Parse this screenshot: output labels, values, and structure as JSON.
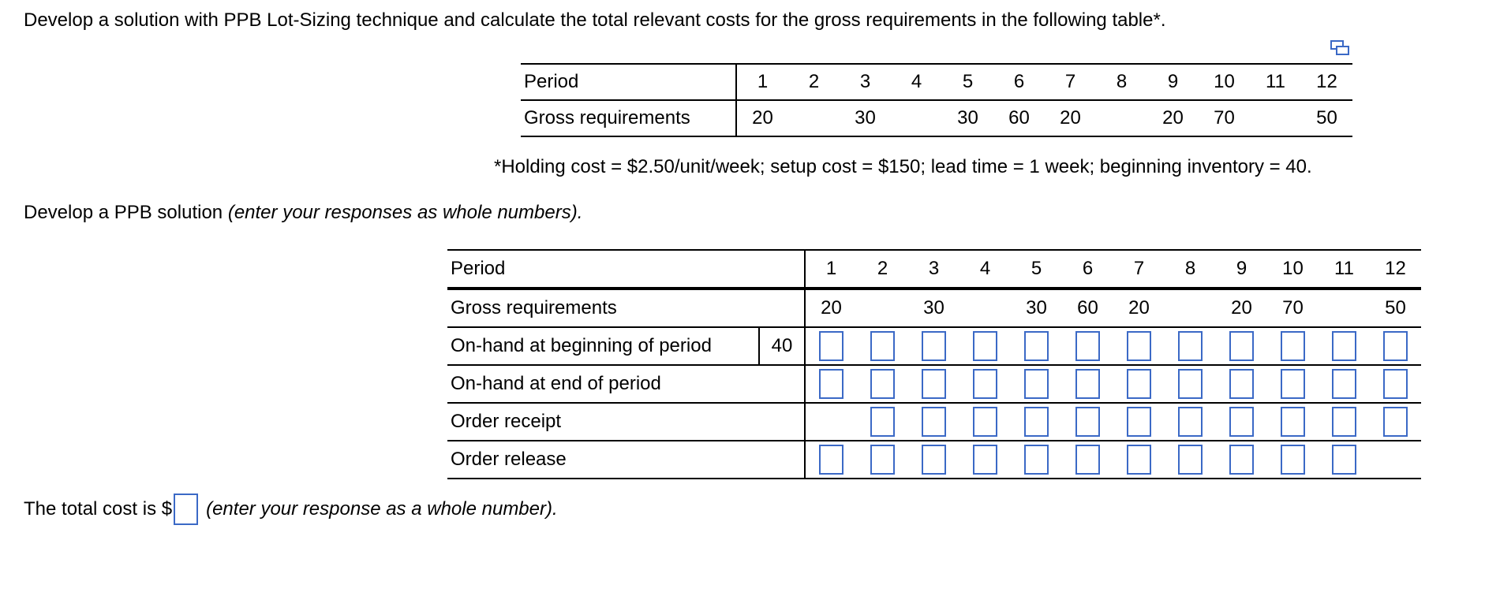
{
  "intro": "Develop a solution with PPB Lot-Sizing technique and calculate the total relevant costs for the gross requirements in the following table*.",
  "given_table": {
    "row_labels": [
      "Period",
      "Gross requirements"
    ],
    "periods": [
      "1",
      "2",
      "3",
      "4",
      "5",
      "6",
      "7",
      "8",
      "9",
      "10",
      "11",
      "12"
    ],
    "gross": [
      "20",
      "",
      "30",
      "",
      "30",
      "60",
      "20",
      "",
      "20",
      "70",
      "",
      "50"
    ]
  },
  "note": "*Holding cost = $2.50/unit/week; setup cost = $150; lead time = 1 week; beginning inventory = 40.",
  "instruction": {
    "text": "Develop a PPB solution",
    "hint": "(enter your responses as whole numbers)."
  },
  "ppb_table": {
    "row_labels": [
      "Period",
      "Gross requirements",
      "On-hand at beginning of period",
      "On-hand at end of period",
      "Order receipt",
      "Order release"
    ],
    "beginning_inventory": "40",
    "periods": [
      "1",
      "2",
      "3",
      "4",
      "5",
      "6",
      "7",
      "8",
      "9",
      "10",
      "11",
      "12"
    ],
    "gross": [
      "20",
      "",
      "30",
      "",
      "30",
      "60",
      "20",
      "",
      "20",
      "70",
      "",
      "50"
    ]
  },
  "total": {
    "prefix": "The total cost is $",
    "hint": "(enter your response as a whole number)."
  },
  "icons": {
    "copy": "copy-icon"
  },
  "colors": {
    "input_border": "#3b69c6"
  }
}
